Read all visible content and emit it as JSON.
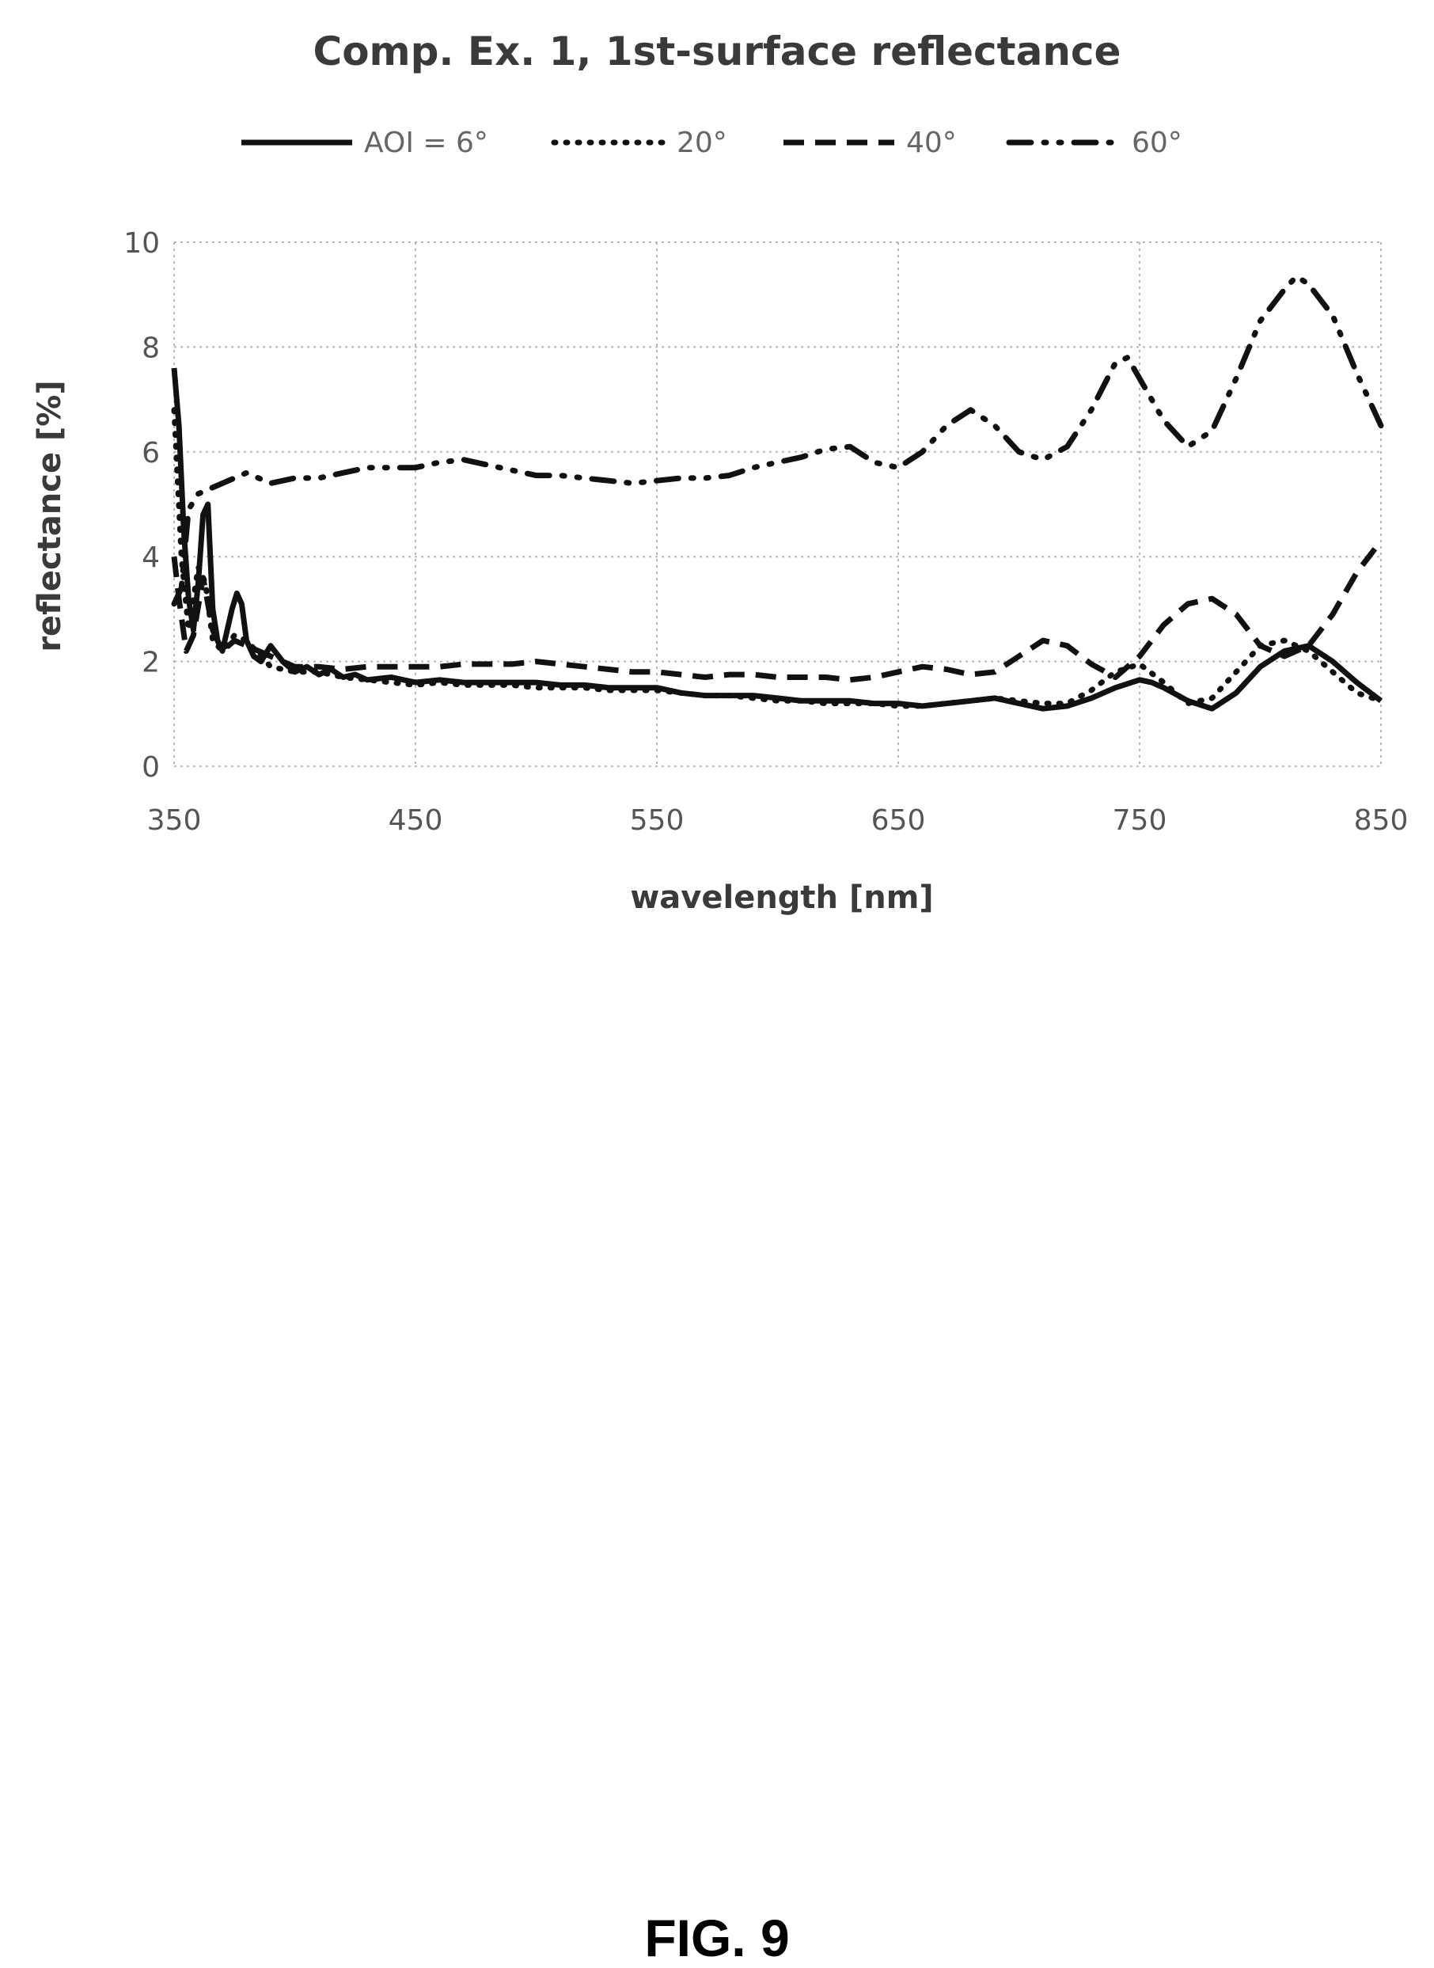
{
  "figure_label": "FIG. 9",
  "chart_data": {
    "type": "line",
    "title": "Comp. Ex. 1, 1st-surface reflectance",
    "xlabel": "wavelength [nm]",
    "ylabel": "reflectance [%]",
    "xlim": [
      350,
      850
    ],
    "ylim": [
      0,
      10
    ],
    "xticks": [
      350,
      450,
      550,
      650,
      750,
      850
    ],
    "yticks": [
      0,
      2,
      4,
      6,
      8,
      10
    ],
    "grid": true,
    "legend_position": "top",
    "series": [
      {
        "name": "AOI = 6°",
        "style": "solid",
        "x": [
          350,
          352,
          354,
          356,
          358,
          360,
          362,
          364,
          366,
          368,
          370,
          372,
          374,
          376,
          378,
          380,
          383,
          386,
          390,
          395,
          400,
          405,
          410,
          415,
          420,
          425,
          430,
          440,
          450,
          460,
          470,
          480,
          490,
          500,
          510,
          520,
          530,
          540,
          550,
          560,
          570,
          580,
          590,
          600,
          610,
          620,
          630,
          640,
          650,
          660,
          670,
          680,
          690,
          700,
          710,
          720,
          730,
          740,
          750,
          755,
          760,
          770,
          780,
          790,
          800,
          810,
          820,
          830,
          840,
          850
        ],
        "y": [
          7.6,
          6.5,
          4.5,
          3.2,
          2.6,
          3.5,
          4.8,
          5.0,
          3.0,
          2.4,
          2.2,
          2.6,
          3.0,
          3.3,
          3.1,
          2.4,
          2.1,
          2.0,
          2.3,
          2.0,
          1.8,
          1.9,
          1.75,
          1.85,
          1.7,
          1.75,
          1.65,
          1.7,
          1.6,
          1.65,
          1.6,
          1.6,
          1.6,
          1.6,
          1.55,
          1.55,
          1.5,
          1.5,
          1.5,
          1.4,
          1.35,
          1.35,
          1.35,
          1.3,
          1.25,
          1.25,
          1.25,
          1.2,
          1.2,
          1.15,
          1.2,
          1.25,
          1.3,
          1.2,
          1.1,
          1.15,
          1.3,
          1.5,
          1.65,
          1.6,
          1.5,
          1.25,
          1.1,
          1.4,
          1.9,
          2.2,
          2.3,
          2.0,
          1.6,
          1.25
        ]
      },
      {
        "name": "20°",
        "style": "dotted",
        "x": [
          350,
          353,
          356,
          360,
          363,
          366,
          370,
          375,
          380,
          390,
          400,
          410,
          420,
          430,
          440,
          450,
          460,
          470,
          480,
          490,
          500,
          510,
          520,
          530,
          540,
          550,
          560,
          570,
          580,
          590,
          600,
          610,
          620,
          630,
          640,
          650,
          660,
          670,
          680,
          690,
          700,
          710,
          720,
          730,
          740,
          750,
          760,
          770,
          780,
          790,
          800,
          810,
          820,
          830,
          840,
          850
        ],
        "y": [
          6.8,
          4.0,
          2.6,
          3.8,
          3.5,
          2.4,
          2.2,
          2.5,
          2.4,
          1.9,
          1.8,
          1.8,
          1.7,
          1.65,
          1.6,
          1.55,
          1.6,
          1.55,
          1.55,
          1.55,
          1.5,
          1.5,
          1.5,
          1.45,
          1.45,
          1.45,
          1.4,
          1.35,
          1.35,
          1.3,
          1.25,
          1.25,
          1.2,
          1.2,
          1.2,
          1.15,
          1.15,
          1.2,
          1.25,
          1.3,
          1.25,
          1.2,
          1.2,
          1.45,
          1.8,
          1.95,
          1.6,
          1.2,
          1.3,
          1.8,
          2.3,
          2.4,
          2.2,
          1.8,
          1.4,
          1.25
        ]
      },
      {
        "name": "40°",
        "style": "dashed",
        "x": [
          350,
          352,
          355,
          358,
          362,
          366,
          370,
          375,
          380,
          390,
          400,
          410,
          420,
          430,
          440,
          450,
          460,
          470,
          480,
          490,
          500,
          510,
          520,
          530,
          540,
          550,
          560,
          570,
          580,
          590,
          600,
          610,
          620,
          630,
          640,
          650,
          660,
          670,
          680,
          690,
          700,
          710,
          720,
          730,
          740,
          750,
          760,
          770,
          780,
          790,
          800,
          810,
          820,
          830,
          840,
          850
        ],
        "y": [
          4.0,
          3.2,
          2.2,
          2.5,
          3.6,
          2.6,
          2.2,
          2.4,
          2.3,
          2.1,
          1.9,
          1.9,
          1.85,
          1.9,
          1.9,
          1.9,
          1.9,
          1.95,
          1.95,
          1.95,
          2.0,
          1.95,
          1.9,
          1.85,
          1.8,
          1.8,
          1.75,
          1.7,
          1.75,
          1.75,
          1.7,
          1.7,
          1.7,
          1.65,
          1.7,
          1.8,
          1.9,
          1.85,
          1.75,
          1.8,
          2.1,
          2.4,
          2.3,
          1.95,
          1.7,
          2.1,
          2.7,
          3.1,
          3.2,
          2.9,
          2.3,
          2.1,
          2.3,
          2.9,
          3.7,
          4.3
        ]
      },
      {
        "name": "60°",
        "style": "dashdot",
        "x": [
          350,
          353,
          356,
          360,
          365,
          370,
          375,
          380,
          390,
          400,
          410,
          420,
          430,
          440,
          450,
          460,
          470,
          480,
          490,
          500,
          510,
          520,
          530,
          540,
          550,
          560,
          570,
          580,
          590,
          600,
          610,
          620,
          630,
          640,
          650,
          660,
          670,
          680,
          690,
          700,
          710,
          720,
          730,
          740,
          745,
          750,
          760,
          770,
          780,
          790,
          800,
          810,
          815,
          820,
          830,
          840,
          850
        ],
        "y": [
          3.1,
          3.4,
          4.9,
          5.2,
          5.3,
          5.4,
          5.5,
          5.6,
          5.4,
          5.5,
          5.5,
          5.6,
          5.7,
          5.7,
          5.7,
          5.8,
          5.85,
          5.75,
          5.65,
          5.55,
          5.55,
          5.5,
          5.45,
          5.4,
          5.45,
          5.5,
          5.5,
          5.55,
          5.7,
          5.8,
          5.9,
          6.05,
          6.1,
          5.8,
          5.7,
          6.0,
          6.5,
          6.8,
          6.5,
          6.0,
          5.85,
          6.1,
          6.8,
          7.7,
          7.8,
          7.4,
          6.6,
          6.1,
          6.4,
          7.4,
          8.5,
          9.1,
          9.35,
          9.2,
          8.6,
          7.5,
          6.5
        ]
      }
    ]
  }
}
